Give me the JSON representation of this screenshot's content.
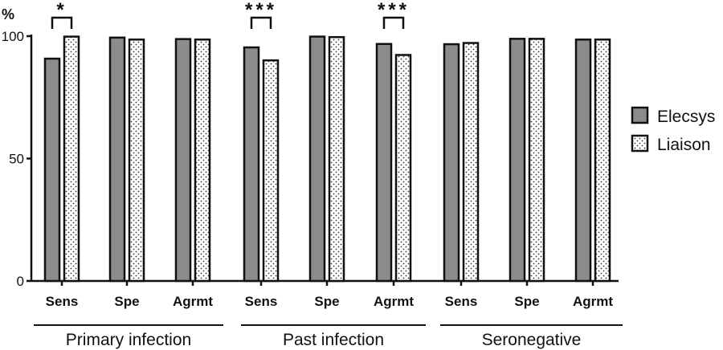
{
  "chart_data": {
    "type": "bar",
    "y_unit": "%",
    "ylim": [
      0,
      100
    ],
    "yticks": [
      "0",
      "50",
      "100"
    ],
    "categories": [
      "Sens",
      "Spe",
      "Agrmt",
      "Sens",
      "Spe",
      "Agrmt",
      "Sens",
      "Spe",
      "Agrmt"
    ],
    "groups": [
      {
        "label": "Primary infection",
        "categories": [
          0,
          1,
          2
        ]
      },
      {
        "label": "Past infection",
        "categories": [
          3,
          4,
          5
        ]
      },
      {
        "label": "Seronegative",
        "categories": [
          6,
          7,
          8
        ]
      }
    ],
    "series": [
      {
        "name": "Elecsys",
        "color": "#8c8c8c",
        "pattern": "solid",
        "values": [
          90.8,
          99.4,
          98.8,
          95.4,
          99.8,
          96.8,
          96.7,
          98.9,
          98.6
        ]
      },
      {
        "name": "Liaison",
        "color": "#ffffff",
        "pattern": "dotted",
        "values": [
          99.8,
          98.6,
          98.6,
          90.1,
          99.6,
          92.3,
          97.2,
          98.9,
          98.6
        ]
      }
    ],
    "significance": [
      {
        "category": 0,
        "label": "*"
      },
      {
        "category": 3,
        "label": "***"
      },
      {
        "category": 5,
        "label": "***"
      }
    ],
    "legend_position": "right",
    "grid": false
  }
}
